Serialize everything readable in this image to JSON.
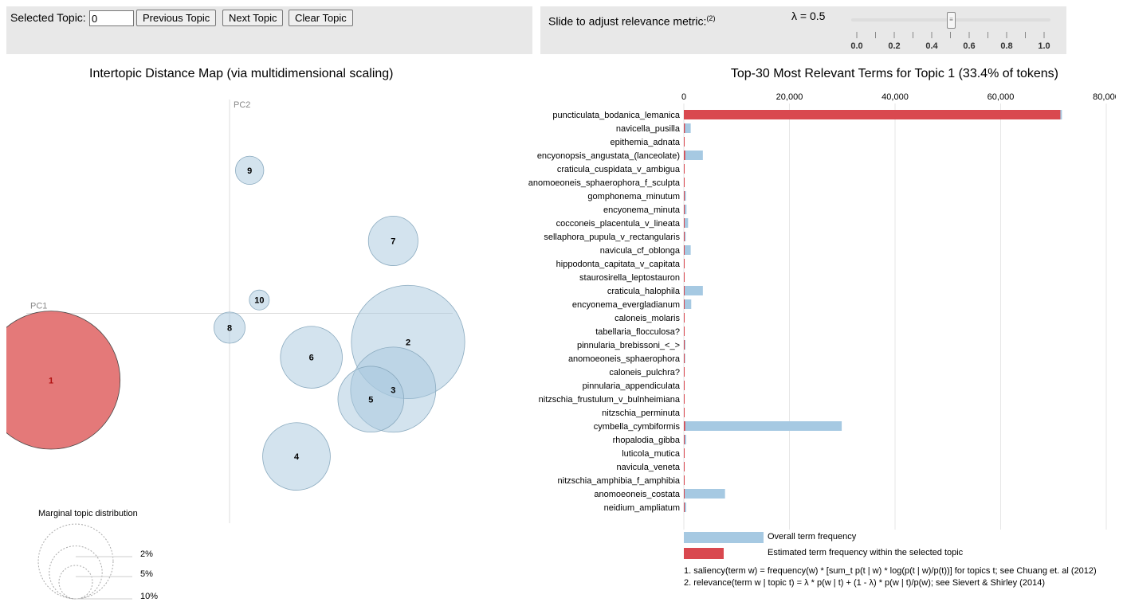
{
  "controls": {
    "topic_label": "Selected Topic:",
    "topic_value": "0",
    "prev_label": "Previous Topic",
    "next_label": "Next Topic",
    "clear_label": "Clear Topic"
  },
  "slider": {
    "label": "Slide to adjust relevance metric:",
    "label_sup": "(2)",
    "lambda_text": "λ = 0.5",
    "value": 0.5,
    "min": 0,
    "max": 1,
    "tick_labels": [
      "0.0",
      "0.2",
      "0.4",
      "0.6",
      "0.8",
      "1.0"
    ],
    "handle_glyph": "≡"
  },
  "map": {
    "title": "Intertopic Distance Map (via multidimensional scaling)",
    "pc1_label": "PC1",
    "pc2_label": "PC2",
    "selected_color": "#e16a6a",
    "topic_color": "#a7c8de",
    "marginal_title": "Marginal topic distribution",
    "marginal_labels": [
      "2%",
      "5%",
      "10%"
    ]
  },
  "bars": {
    "title": "Top-30 Most Relevant Terms for Topic 1 (33.4% of tokens)",
    "overall_color": "#a6c9e2",
    "topic_color": "#d9484f",
    "legend_overall": "Overall term frequency",
    "legend_topic": "Estimated term frequency within the selected topic",
    "note1": "1. saliency(term w) = frequency(w) * [sum_t p(t | w) * log(p(t | w)/p(t))] for topics t; see Chuang et. al (2012)",
    "note2": "2. relevance(term w | topic t) = λ * p(w | t) + (1 - λ) * p(w | t)/p(w); see Sievert & Shirley (2014)"
  },
  "chart_data": [
    {
      "type": "scatter",
      "title": "Intertopic Distance Map (via multidimensional scaling)",
      "xlabel": "PC1",
      "ylabel": "PC2",
      "xlim": [
        -0.3,
        0.3
      ],
      "ylim": [
        -0.22,
        0.22
      ],
      "encoding": "bubble area = marginal topic distribution (%)",
      "points": [
        {
          "topic": "1",
          "x": -0.24,
          "y": -0.07,
          "size": 33.4,
          "selected": true
        },
        {
          "topic": "2",
          "x": 0.24,
          "y": -0.03,
          "size": 22.5
        },
        {
          "topic": "3",
          "x": 0.22,
          "y": -0.08,
          "size": 12.7
        },
        {
          "topic": "4",
          "x": 0.09,
          "y": -0.15,
          "size": 8.0
        },
        {
          "topic": "5",
          "x": 0.19,
          "y": -0.09,
          "size": 7.6
        },
        {
          "topic": "6",
          "x": 0.11,
          "y": -0.046,
          "size": 6.7
        },
        {
          "topic": "7",
          "x": 0.22,
          "y": 0.076,
          "size": 4.3
        },
        {
          "topic": "8",
          "x": 0.0,
          "y": -0.015,
          "size": 1.7
        },
        {
          "topic": "9",
          "x": 0.027,
          "y": 0.15,
          "size": 1.4
        },
        {
          "topic": "10",
          "x": 0.04,
          "y": 0.014,
          "size": 0.7
        }
      ],
      "legend": {
        "title": "Marginal topic distribution",
        "sizes": [
          2,
          5,
          10
        ],
        "labels": [
          "2%",
          "5%",
          "10%"
        ]
      }
    },
    {
      "type": "bar",
      "orientation": "horizontal",
      "title": "Top-30 Most Relevant Terms for Topic 1 (33.4% of tokens)",
      "xlim": [
        0,
        80000
      ],
      "xticks": [
        0,
        20000,
        40000,
        60000,
        80000
      ],
      "xtick_labels": [
        "0",
        "20,000",
        "40,000",
        "60,000",
        "80,000"
      ],
      "categories": [
        "puncticulata_bodanica_lemanica",
        "navicella_pusilla",
        "epithemia_adnata",
        "encyonopsis_angustata_(lanceolate)",
        "craticula_cuspidata_v_ambigua",
        "anomoeoneis_sphaerophora_f_sculpta",
        "gomphonema_minutum",
        "encyonema_minuta",
        "cocconeis_placentula_v_lineata",
        "sellaphora_pupula_v_rectangularis",
        "navicula_cf_oblonga",
        "hippodonta_capitata_v_capitata",
        "staurosirella_leptostauron",
        "craticula_halophila",
        "encyonema_evergladianum",
        "caloneis_molaris",
        "tabellaria_flocculosa?",
        "pinnularia_brebissoni_<_>",
        "anomoeoneis_sphaerophora",
        "caloneis_pulchra?",
        "pinnularia_appendiculata",
        "nitzschia_frustulum_v_bulnheimiana",
        "nitzschia_perminuta",
        "cymbella_cymbiformis",
        "rhopalodia_gibba",
        "luticola_mutica",
        "navicula_veneta",
        "nitzschia_amphibia_f_amphibia",
        "anomoeoneis_costata",
        "neidium_ampliatum"
      ],
      "series": [
        {
          "name": "Overall term frequency",
          "values": [
            71600,
            1300,
            60,
            3600,
            40,
            30,
            400,
            500,
            800,
            350,
            1300,
            30,
            40,
            3600,
            1400,
            25,
            20,
            300,
            250,
            20,
            20,
            20,
            20,
            29900,
            450,
            50,
            150,
            50,
            7800,
            450
          ]
        },
        {
          "name": "Estimated term frequency within the selected topic",
          "values": [
            71300,
            200,
            60,
            250,
            40,
            30,
            30,
            20,
            25,
            20,
            30,
            30,
            40,
            20,
            30,
            25,
            20,
            20,
            25,
            20,
            20,
            20,
            20,
            250,
            20,
            20,
            20,
            20,
            20,
            20
          ]
        }
      ]
    }
  ]
}
